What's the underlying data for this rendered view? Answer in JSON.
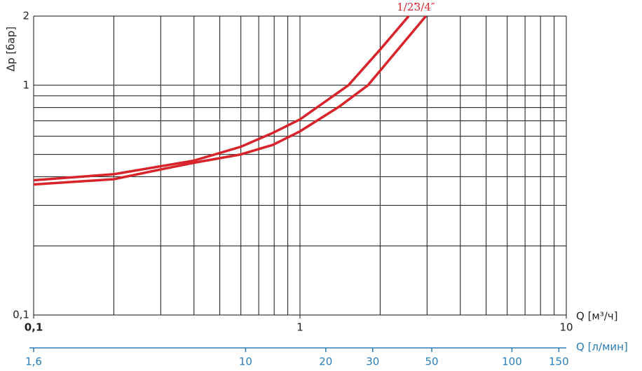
{
  "chart_data": {
    "type": "line",
    "log_x": true,
    "log_y": true,
    "grid": true,
    "ylabel": "Δp [бар]",
    "xlabel": "Q [м³/ч]",
    "x2label": "Q [л/мин]",
    "xlim": [
      0.1,
      10
    ],
    "xticks": [
      {
        "value": 0.1,
        "label": "0,1"
      },
      1,
      10
    ],
    "x_minor_grid": [
      0.2,
      0.3,
      0.4,
      0.5,
      0.6,
      0.7,
      0.8,
      0.9,
      2,
      3,
      4,
      5,
      6,
      7,
      8,
      9
    ],
    "ylim": [
      0.1,
      2
    ],
    "yticks": [
      {
        "value": 0.1,
        "label": "0,1"
      },
      1,
      2
    ],
    "y_minor_grid": [
      0.2,
      0.3,
      0.4,
      0.5,
      0.6,
      0.7,
      0.8,
      0.9
    ],
    "x2lim": [
      1.6,
      160
    ],
    "x2ticks": [
      {
        "value": 1.6,
        "label": "1,6"
      },
      10,
      20,
      30,
      50,
      100,
      150
    ],
    "x2color": "#2a7db5",
    "series": [
      {
        "name": "1/2″",
        "color": "#d8232a",
        "x": [
          0.1,
          0.2,
          0.4,
          0.6,
          0.79,
          1,
          1.52,
          2,
          2.56
        ],
        "values": [
          0.386,
          0.41,
          0.47,
          0.54,
          0.62,
          0.71,
          1,
          1.43,
          2
        ]
      },
      {
        "name": "3/4″",
        "color": "#d8232a",
        "x": [
          0.1,
          0.2,
          0.3,
          0.4,
          0.6,
          0.79,
          1,
          1.41,
          1.8,
          2.97
        ],
        "values": [
          0.37,
          0.39,
          0.43,
          0.46,
          0.5,
          0.55,
          0.63,
          0.81,
          1,
          2
        ]
      }
    ]
  }
}
